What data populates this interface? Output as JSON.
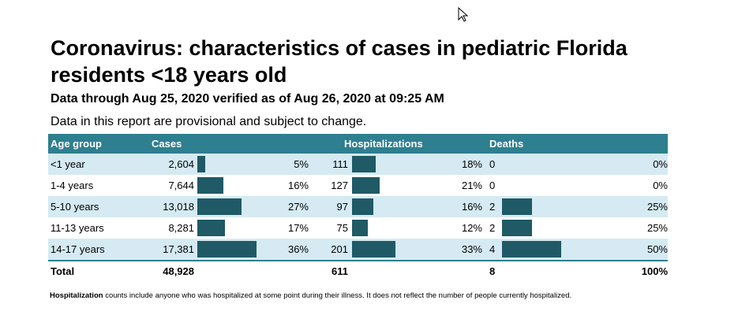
{
  "report": {
    "title": "Coronavirus: characteristics of cases in pediatric Florida residents <18 years old",
    "subtitle": "Data through Aug 25, 2020 verified as of Aug 26, 2020 at 09:25 AM",
    "note": "Data in this report are provisional and subject to change.",
    "bar_color": "#1f5a66",
    "header_color": "#2e7f8f",
    "row_alt_color": "#d5eaf2"
  },
  "table": {
    "headers": {
      "age_group": "Age group",
      "cases": "Cases",
      "hospitalizations": "Hospitalizations",
      "deaths": "Deaths"
    },
    "rows": [
      {
        "age": "<1 year",
        "cases": "2,604",
        "cases_pct": "5%",
        "cases_frac": 0.05,
        "hosp": "111",
        "hosp_pct": "18%",
        "hosp_frac": 0.18,
        "deaths": "0",
        "deaths_pct": "0%",
        "deaths_frac": 0
      },
      {
        "age": "1-4 years",
        "cases": "7,644",
        "cases_pct": "16%",
        "cases_frac": 0.16,
        "hosp": "127",
        "hosp_pct": "21%",
        "hosp_frac": 0.21,
        "deaths": "0",
        "deaths_pct": "0%",
        "deaths_frac": 0
      },
      {
        "age": "5-10 years",
        "cases": "13,018",
        "cases_pct": "27%",
        "cases_frac": 0.27,
        "hosp": "97",
        "hosp_pct": "16%",
        "hosp_frac": 0.16,
        "deaths": "2",
        "deaths_pct": "25%",
        "deaths_frac": 0.25
      },
      {
        "age": "11-13 years",
        "cases": "8,281",
        "cases_pct": "17%",
        "cases_frac": 0.17,
        "hosp": "75",
        "hosp_pct": "12%",
        "hosp_frac": 0.12,
        "deaths": "2",
        "deaths_pct": "25%",
        "deaths_frac": 0.25
      },
      {
        "age": "14-17 years",
        "cases": "17,381",
        "cases_pct": "36%",
        "cases_frac": 0.36,
        "hosp": "201",
        "hosp_pct": "33%",
        "hosp_frac": 0.33,
        "deaths": "4",
        "deaths_pct": "50%",
        "deaths_frac": 0.5
      }
    ],
    "total": {
      "label": "Total",
      "cases": "48,928",
      "hosp": "611",
      "deaths": "8",
      "deaths_pct": "100%"
    }
  },
  "footnote": {
    "bold": "Hospitalization",
    "text": " counts include anyone who was hospitalized at some point during their illness. It does not reflect the number of people currently hospitalized."
  },
  "cursor": {
    "icon": "mouse-pointer-icon"
  }
}
